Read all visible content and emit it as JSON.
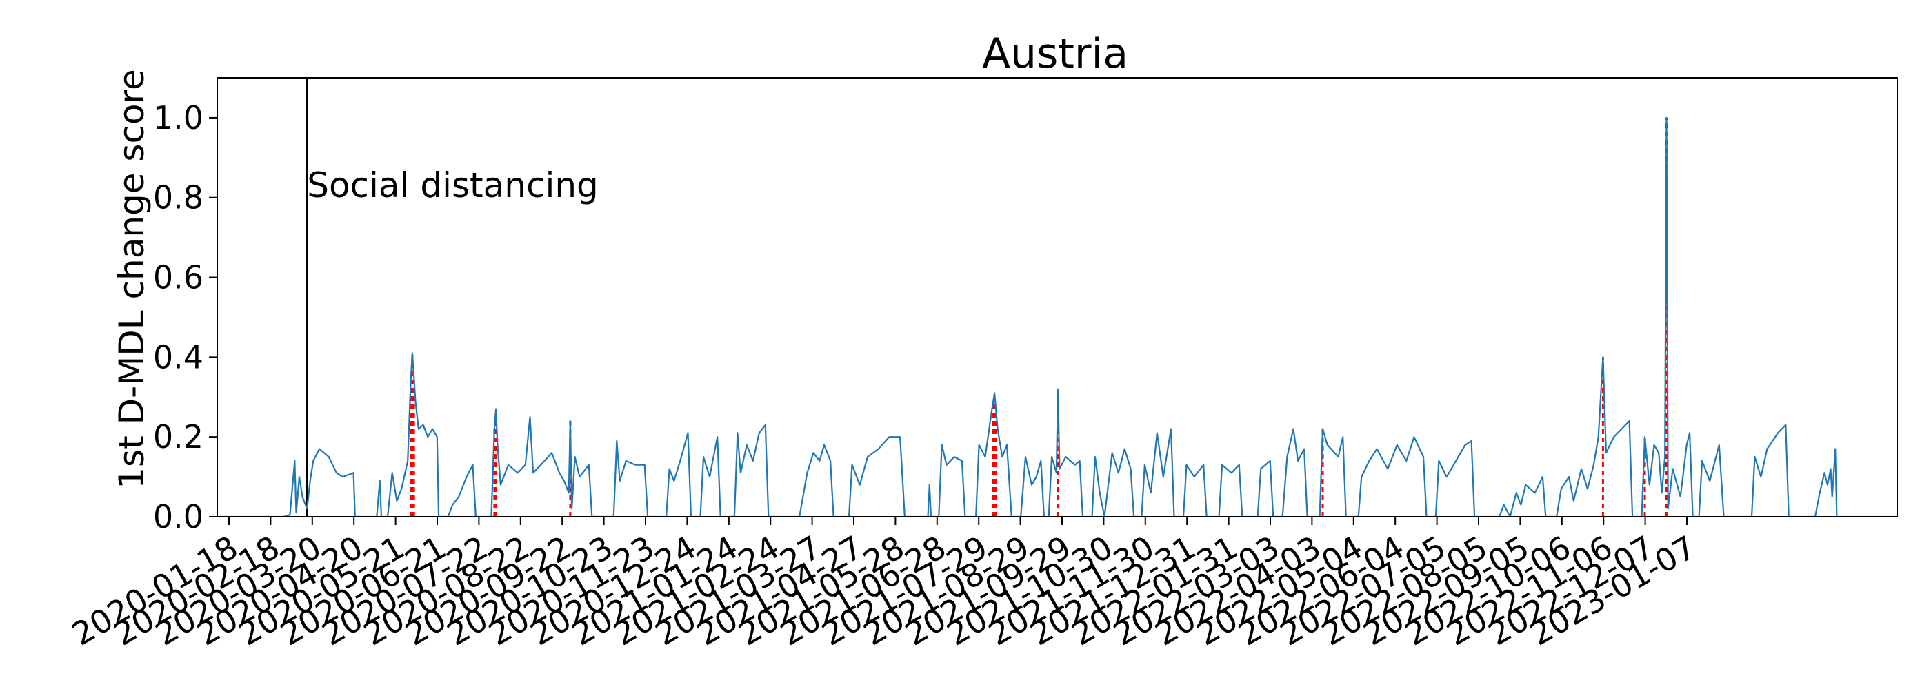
{
  "chart_data": {
    "type": "line",
    "title": "Austria",
    "xlabel": "",
    "ylabel": "1st D-MDL change score",
    "ylim": [
      0.0,
      1.1
    ],
    "yticks": [
      0.0,
      0.2,
      0.4,
      0.6,
      0.8,
      1.0
    ],
    "ytick_labels": [
      "0.0",
      "0.2",
      "0.4",
      "0.6",
      "0.8",
      "1.0"
    ],
    "xlim": [
      "2020-01-18",
      "2023-01-07"
    ],
    "xtick_labels": [
      "2020-01-18",
      "2020-02-18",
      "2020-03-20",
      "2020-04-20",
      "2020-05-21",
      "2020-06-21",
      "2020-07-22",
      "2020-08-22",
      "2020-09-22",
      "2020-10-23",
      "2020-11-23",
      "2020-12-24",
      "2021-01-24",
      "2021-02-24",
      "2021-03-27",
      "2021-04-27",
      "2021-05-28",
      "2021-06-28",
      "2021-07-29",
      "2021-08-29",
      "2021-09-29",
      "2021-10-30",
      "2021-11-30",
      "2021-12-31",
      "2022-01-31",
      "2022-03-03",
      "2022-04-03",
      "2022-05-04",
      "2022-06-04",
      "2022-07-05",
      "2022-08-05",
      "2022-09-05",
      "2022-10-06",
      "2022-11-06",
      "2022-12-07",
      "2023-01-07"
    ],
    "grid": false,
    "series_color": "#1f77b4",
    "change_color": "#ff0000",
    "event_color": "#000000",
    "annotation": {
      "text": "Social distancing",
      "date": "2020-03-16"
    },
    "series": [
      {
        "points": [
          [
            "2020-01-18",
            0
          ],
          [
            "2020-03-01",
            0
          ],
          [
            "2020-03-05",
            0.005
          ],
          [
            "2020-03-08",
            0.14
          ],
          [
            "2020-03-09",
            0.01
          ],
          [
            "2020-03-11",
            0.1
          ],
          [
            "2020-03-13",
            0.05
          ],
          [
            "2020-03-16",
            0.02
          ],
          [
            "2020-03-18",
            0.09
          ],
          [
            "2020-03-20",
            0.14
          ],
          [
            "2020-03-24",
            0.17
          ],
          [
            "2020-03-30",
            0.15
          ],
          [
            "2020-04-04",
            0.11
          ],
          [
            "2020-04-08",
            0.1
          ],
          [
            "2020-04-15",
            0.11
          ],
          [
            "2020-04-16",
            0
          ],
          [
            "2020-04-30",
            0
          ],
          [
            "2020-05-02",
            0.09
          ],
          [
            "2020-05-03",
            0
          ],
          [
            "2020-05-07",
            0
          ],
          [
            "2020-05-10",
            0.11
          ],
          [
            "2020-05-13",
            0.04
          ],
          [
            "2020-05-16",
            0.07
          ],
          [
            "2020-05-20",
            0.14
          ],
          [
            "2020-05-22",
            0.34
          ],
          [
            "2020-05-23",
            0.41
          ],
          [
            "2020-05-25",
            0.29
          ],
          [
            "2020-05-27",
            0.22
          ],
          [
            "2020-05-30",
            0.23
          ],
          [
            "2020-06-02",
            0.2
          ],
          [
            "2020-06-05",
            0.22
          ],
          [
            "2020-06-08",
            0.2
          ],
          [
            "2020-06-09",
            0
          ],
          [
            "2020-06-15",
            0
          ],
          [
            "2020-06-18",
            0.03
          ],
          [
            "2020-06-22",
            0.05
          ],
          [
            "2020-06-27",
            0.1
          ],
          [
            "2020-07-01",
            0.13
          ],
          [
            "2020-07-03",
            0
          ],
          [
            "2020-07-13",
            0
          ],
          [
            "2020-07-15",
            0.22
          ],
          [
            "2020-07-16",
            0.27
          ],
          [
            "2020-07-17",
            0.18
          ],
          [
            "2020-07-19",
            0.08
          ],
          [
            "2020-07-24",
            0.13
          ],
          [
            "2020-07-30",
            0.11
          ],
          [
            "2020-08-04",
            0.13
          ],
          [
            "2020-08-07",
            0.25
          ],
          [
            "2020-08-09",
            0.11
          ],
          [
            "2020-08-14",
            0.13
          ],
          [
            "2020-08-21",
            0.16
          ],
          [
            "2020-08-26",
            0.11
          ],
          [
            "2020-08-29",
            0.09
          ],
          [
            "2020-09-01",
            0.06
          ],
          [
            "2020-09-02",
            0.24
          ],
          [
            "2020-09-03",
            0.02
          ],
          [
            "2020-09-05",
            0.15
          ],
          [
            "2020-09-08",
            0.1
          ],
          [
            "2020-09-14",
            0.13
          ],
          [
            "2020-09-16",
            0
          ],
          [
            "2020-09-30",
            0
          ],
          [
            "2020-10-02",
            0.19
          ],
          [
            "2020-10-04",
            0.09
          ],
          [
            "2020-10-08",
            0.14
          ],
          [
            "2020-10-14",
            0.13
          ],
          [
            "2020-10-20",
            0.13
          ],
          [
            "2020-10-22",
            0
          ],
          [
            "2020-11-03",
            0
          ],
          [
            "2020-11-05",
            0.12
          ],
          [
            "2020-11-08",
            0.09
          ],
          [
            "2020-11-12",
            0.14
          ],
          [
            "2020-11-17",
            0.21
          ],
          [
            "2020-11-19",
            0
          ],
          [
            "2020-11-25",
            0
          ],
          [
            "2020-11-27",
            0.15
          ],
          [
            "2020-12-01",
            0.1
          ],
          [
            "2020-12-06",
            0.2
          ],
          [
            "2020-12-08",
            0
          ],
          [
            "2020-12-17",
            0
          ],
          [
            "2020-12-19",
            0.21
          ],
          [
            "2020-12-21",
            0.11
          ],
          [
            "2020-12-25",
            0.18
          ],
          [
            "2020-12-29",
            0.14
          ],
          [
            "2021-01-02",
            0.21
          ],
          [
            "2021-01-06",
            0.23
          ],
          [
            "2021-01-08",
            0
          ],
          [
            "2021-01-28",
            0
          ],
          [
            "2021-02-02",
            0.11
          ],
          [
            "2021-02-06",
            0.16
          ],
          [
            "2021-02-10",
            0.14
          ],
          [
            "2021-02-13",
            0.18
          ],
          [
            "2021-02-17",
            0.14
          ],
          [
            "2021-02-19",
            0
          ],
          [
            "2021-03-01",
            0
          ],
          [
            "2021-03-03",
            0.13
          ],
          [
            "2021-03-08",
            0.08
          ],
          [
            "2021-03-13",
            0.15
          ],
          [
            "2021-03-20",
            0.17
          ],
          [
            "2021-03-27",
            0.2
          ],
          [
            "2021-04-03",
            0.2
          ],
          [
            "2021-04-06",
            0
          ],
          [
            "2021-04-21",
            0
          ],
          [
            "2021-04-22",
            0.08
          ],
          [
            "2021-04-23",
            0
          ],
          [
            "2021-04-28",
            0
          ],
          [
            "2021-04-30",
            0.18
          ],
          [
            "2021-05-03",
            0.13
          ],
          [
            "2021-05-08",
            0.15
          ],
          [
            "2021-05-13",
            0.14
          ],
          [
            "2021-05-15",
            0
          ],
          [
            "2021-05-22",
            0
          ],
          [
            "2021-05-24",
            0.18
          ],
          [
            "2021-05-28",
            0.15
          ],
          [
            "2021-06-01",
            0.26
          ],
          [
            "2021-06-03",
            0.31
          ],
          [
            "2021-06-05",
            0.22
          ],
          [
            "2021-06-08",
            0.15
          ],
          [
            "2021-06-11",
            0.18
          ],
          [
            "2021-06-14",
            0
          ],
          [
            "2021-06-20",
            0
          ],
          [
            "2021-06-23",
            0.15
          ],
          [
            "2021-06-27",
            0.08
          ],
          [
            "2021-06-30",
            0.1
          ],
          [
            "2021-07-03",
            0.14
          ],
          [
            "2021-07-05",
            0
          ],
          [
            "2021-07-08",
            0
          ],
          [
            "2021-07-10",
            0.15
          ],
          [
            "2021-07-13",
            0.11
          ],
          [
            "2021-07-14",
            0.32
          ],
          [
            "2021-07-15",
            0.12
          ],
          [
            "2021-07-19",
            0.15
          ],
          [
            "2021-07-25",
            0.13
          ],
          [
            "2021-07-28",
            0.14
          ],
          [
            "2021-07-30",
            0
          ],
          [
            "2021-08-05",
            0
          ],
          [
            "2021-08-07",
            0.15
          ],
          [
            "2021-08-10",
            0.06
          ],
          [
            "2021-08-13",
            0
          ],
          [
            "2021-08-18",
            0.16
          ],
          [
            "2021-08-22",
            0.11
          ],
          [
            "2021-08-26",
            0.17
          ],
          [
            "2021-08-30",
            0.12
          ],
          [
            "2021-09-01",
            0
          ],
          [
            "2021-09-06",
            0
          ],
          [
            "2021-09-08",
            0.13
          ],
          [
            "2021-09-12",
            0.06
          ],
          [
            "2021-09-16",
            0.21
          ],
          [
            "2021-09-20",
            0.1
          ],
          [
            "2021-09-25",
            0.22
          ],
          [
            "2021-09-27",
            0
          ],
          [
            "2021-10-03",
            0
          ],
          [
            "2021-10-05",
            0.13
          ],
          [
            "2021-10-10",
            0.1
          ],
          [
            "2021-10-16",
            0.13
          ],
          [
            "2021-10-18",
            0
          ],
          [
            "2021-10-26",
            0
          ],
          [
            "2021-10-28",
            0.13
          ],
          [
            "2021-11-03",
            0.11
          ],
          [
            "2021-11-08",
            0.13
          ],
          [
            "2021-11-10",
            0
          ],
          [
            "2021-11-20",
            0
          ],
          [
            "2021-11-22",
            0.12
          ],
          [
            "2021-11-28",
            0.14
          ],
          [
            "2021-11-30",
            0
          ],
          [
            "2021-12-06",
            0
          ],
          [
            "2021-12-09",
            0.15
          ],
          [
            "2021-12-13",
            0.22
          ],
          [
            "2021-12-16",
            0.14
          ],
          [
            "2021-12-20",
            0.17
          ],
          [
            "2021-12-22",
            0
          ],
          [
            "2021-12-30",
            0
          ],
          [
            "2022-01-01",
            0.22
          ],
          [
            "2022-01-04",
            0.18
          ],
          [
            "2022-01-11",
            0.15
          ],
          [
            "2022-01-14",
            0.2
          ],
          [
            "2022-01-16",
            0
          ],
          [
            "2022-01-24",
            0
          ],
          [
            "2022-01-26",
            0.1
          ],
          [
            "2022-01-31",
            0.14
          ],
          [
            "2022-02-05",
            0.17
          ],
          [
            "2022-02-12",
            0.12
          ],
          [
            "2022-02-18",
            0.18
          ],
          [
            "2022-02-24",
            0.14
          ],
          [
            "2022-03-01",
            0.2
          ],
          [
            "2022-03-07",
            0.15
          ],
          [
            "2022-03-09",
            0
          ],
          [
            "2022-03-15",
            0
          ],
          [
            "2022-03-17",
            0.14
          ],
          [
            "2022-03-22",
            0.1
          ],
          [
            "2022-03-28",
            0.14
          ],
          [
            "2022-04-03",
            0.18
          ],
          [
            "2022-04-07",
            0.19
          ],
          [
            "2022-04-09",
            0
          ],
          [
            "2022-04-25",
            0
          ],
          [
            "2022-04-28",
            0.03
          ],
          [
            "2022-05-02",
            0
          ],
          [
            "2022-05-06",
            0.06
          ],
          [
            "2022-05-09",
            0.03
          ],
          [
            "2022-05-12",
            0.08
          ],
          [
            "2022-05-18",
            0.06
          ],
          [
            "2022-05-23",
            0.1
          ],
          [
            "2022-05-25",
            0
          ],
          [
            "2022-06-01",
            0
          ],
          [
            "2022-06-04",
            0.07
          ],
          [
            "2022-06-09",
            0.1
          ],
          [
            "2022-06-12",
            0.04
          ],
          [
            "2022-06-17",
            0.12
          ],
          [
            "2022-06-21",
            0.07
          ],
          [
            "2022-06-25",
            0.13
          ],
          [
            "2022-06-28",
            0.2
          ],
          [
            "2022-07-01",
            0.4
          ],
          [
            "2022-07-03",
            0.16
          ],
          [
            "2022-07-08",
            0.2
          ],
          [
            "2022-07-13",
            0.22
          ],
          [
            "2022-07-18",
            0.24
          ],
          [
            "2022-07-20",
            0
          ],
          [
            "2022-07-26",
            0
          ],
          [
            "2022-07-28",
            0.2
          ],
          [
            "2022-07-31",
            0.08
          ],
          [
            "2022-08-03",
            0.18
          ],
          [
            "2022-08-06",
            0.16
          ],
          [
            "2022-08-08",
            0.06
          ],
          [
            "2022-08-10",
            0.15
          ],
          [
            "2022-08-11",
            1.0
          ],
          [
            "2022-08-12",
            0.02
          ],
          [
            "2022-08-15",
            0.12
          ],
          [
            "2022-08-20",
            0.05
          ],
          [
            "2022-08-24",
            0.18
          ],
          [
            "2022-08-26",
            0.21
          ],
          [
            "2022-08-28",
            0
          ],
          [
            "2022-09-01",
            0
          ],
          [
            "2022-09-03",
            0.14
          ],
          [
            "2022-09-08",
            0.09
          ],
          [
            "2022-09-14",
            0.18
          ],
          [
            "2022-09-17",
            0
          ],
          [
            "2022-10-05",
            0
          ],
          [
            "2022-10-07",
            0.15
          ],
          [
            "2022-10-11",
            0.1
          ],
          [
            "2022-10-15",
            0.17
          ],
          [
            "2022-10-22",
            0.21
          ],
          [
            "2022-10-27",
            0.23
          ],
          [
            "2022-10-29",
            0
          ],
          [
            "2022-11-15",
            0
          ],
          [
            "2022-11-18",
            0.06
          ],
          [
            "2022-11-21",
            0.11
          ],
          [
            "2022-11-23",
            0.08
          ],
          [
            "2022-11-25",
            0.12
          ],
          [
            "2022-11-26",
            0.05
          ],
          [
            "2022-11-28",
            0.17
          ],
          [
            "2022-11-29",
            0
          ],
          [
            "2023-01-07",
            0
          ]
        ]
      }
    ],
    "change_points": [
      "2020-05-22",
      "2020-05-23",
      "2020-05-24",
      "2020-07-15",
      "2020-07-16",
      "2020-09-02",
      "2021-06-02",
      "2021-06-03",
      "2021-06-04",
      "2021-07-14",
      "2022-01-01",
      "2022-07-01",
      "2022-07-28",
      "2022-08-11"
    ]
  }
}
